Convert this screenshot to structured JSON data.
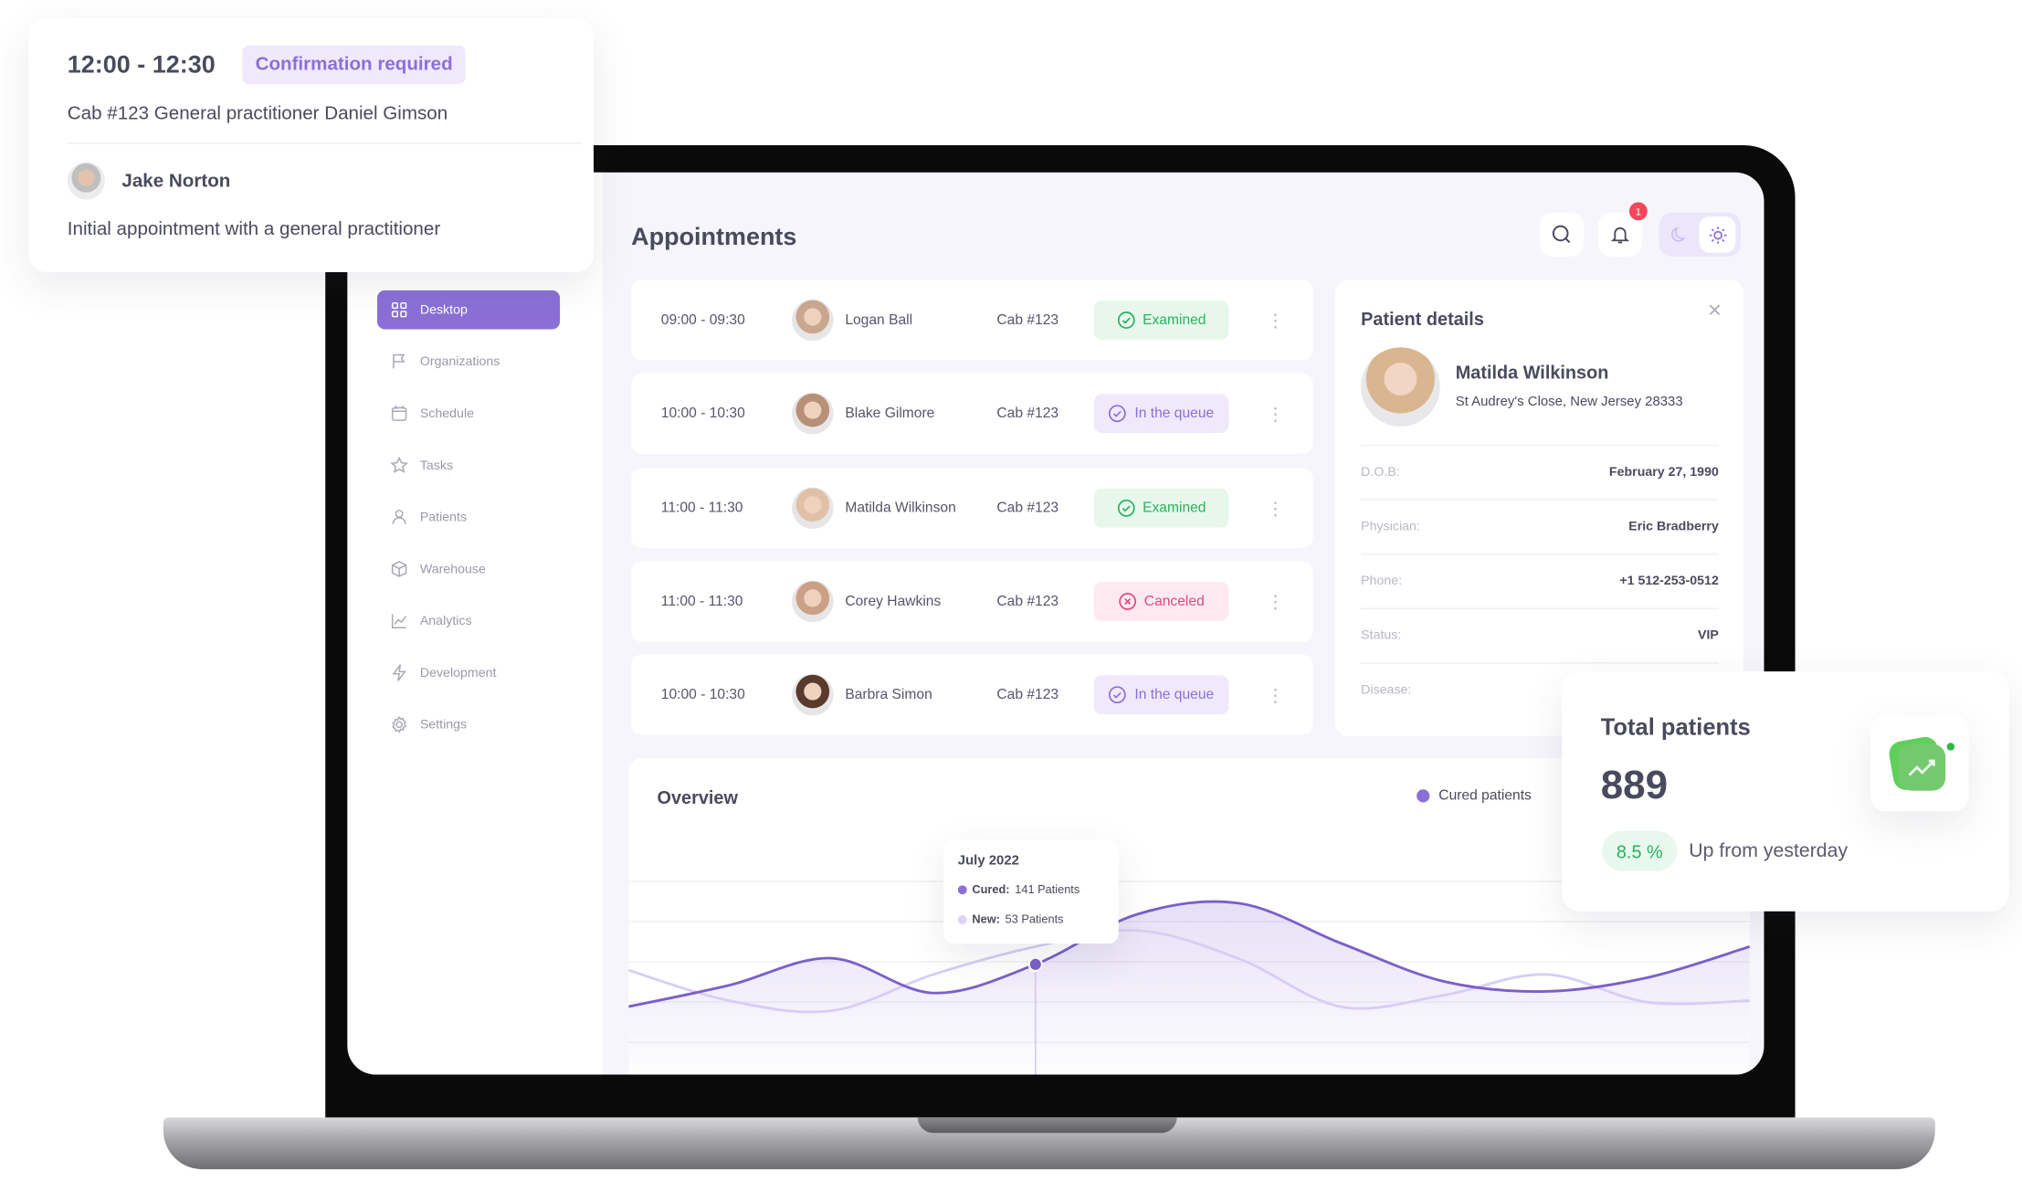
{
  "popup": {
    "time": "12:00 - 12:30",
    "status": "Confirmation required",
    "details": "Cab #123  General practitioner Daniel Gimson",
    "patient": "Jake Norton",
    "description": "Initial appointment with a general practitioner"
  },
  "sidebar": {
    "items": [
      {
        "label": "Desktop",
        "icon": "grid-icon",
        "active": true
      },
      {
        "label": "Organizations",
        "icon": "flag-icon"
      },
      {
        "label": "Schedule",
        "icon": "calendar-icon"
      },
      {
        "label": "Tasks",
        "icon": "star-icon"
      },
      {
        "label": "Patients",
        "icon": "user-icon"
      },
      {
        "label": "Warehouse",
        "icon": "box-icon"
      },
      {
        "label": "Analytics",
        "icon": "chart-icon"
      },
      {
        "label": "Development",
        "icon": "bolt-icon"
      },
      {
        "label": "Settings",
        "icon": "gear-icon"
      }
    ]
  },
  "header": {
    "title": "Appointments",
    "notification_count": "1"
  },
  "appointments": [
    {
      "time": "09:00 - 09:30",
      "name": "Logan Ball",
      "cab": "Cab #123",
      "status": "Examined",
      "kind": "examined"
    },
    {
      "time": "10:00 - 10:30",
      "name": "Blake Gilmore",
      "cab": "Cab #123",
      "status": "In the queue",
      "kind": "queue"
    },
    {
      "time": "11:00 - 11:30",
      "name": "Matilda Wilkinson",
      "cab": "Cab #123",
      "status": "Examined",
      "kind": "examined"
    },
    {
      "time": "11:00 - 11:30",
      "name": "Corey Hawkins",
      "cab": "Cab #123",
      "status": "Canceled",
      "kind": "canceled"
    },
    {
      "time": "10:00 - 10:30",
      "name": "Barbra Simon",
      "cab": "Cab #123",
      "status": "In the queue",
      "kind": "queue"
    }
  ],
  "patient_details": {
    "title": "Patient details",
    "name": "Matilda Wilkinson",
    "address": "St Audrey's Close, New Jersey 28333",
    "fields": [
      {
        "label": "D.O.B:",
        "value": "February 27, 1990"
      },
      {
        "label": "Physician:",
        "value": "Eric Bradberry"
      },
      {
        "label": "Phone:",
        "value": "+1 512-253-0512"
      },
      {
        "label": "Status:",
        "value": "VIP"
      },
      {
        "label": "Disease:",
        "value": ""
      }
    ]
  },
  "overview": {
    "title": "Overview",
    "legend": "Cured patients",
    "tooltip": {
      "title": "July 2022",
      "cured_label": "Cured:",
      "cured_value": "141 Patients",
      "new_label": "New:",
      "new_value": "53 Patients"
    }
  },
  "total_patients": {
    "title": "Total patients",
    "value": "889",
    "change": "8.5 %",
    "change_text": "Up from yesterday"
  },
  "colors": {
    "accent": "#8b6fd6",
    "accent_light": "#d8cdf5",
    "green": "#27b35d",
    "red": "#f0475b"
  },
  "chart_data": {
    "type": "area",
    "title": "Overview",
    "grid": true,
    "legend_placement": "top-right",
    "x": [
      0,
      1,
      2,
      3,
      4,
      5,
      6,
      7,
      8,
      9,
      10,
      11
    ],
    "series": [
      {
        "name": "Cured patients",
        "values": [
          86,
          114,
          149,
          104,
          141,
          206,
          220,
          168,
          119,
          106,
          124,
          164
        ]
      },
      {
        "values": [
          134,
          94,
          81,
          128,
          164,
          185,
          148,
          86,
          101,
          128,
          92,
          94
        ]
      }
    ],
    "highlight_index": 4
  }
}
